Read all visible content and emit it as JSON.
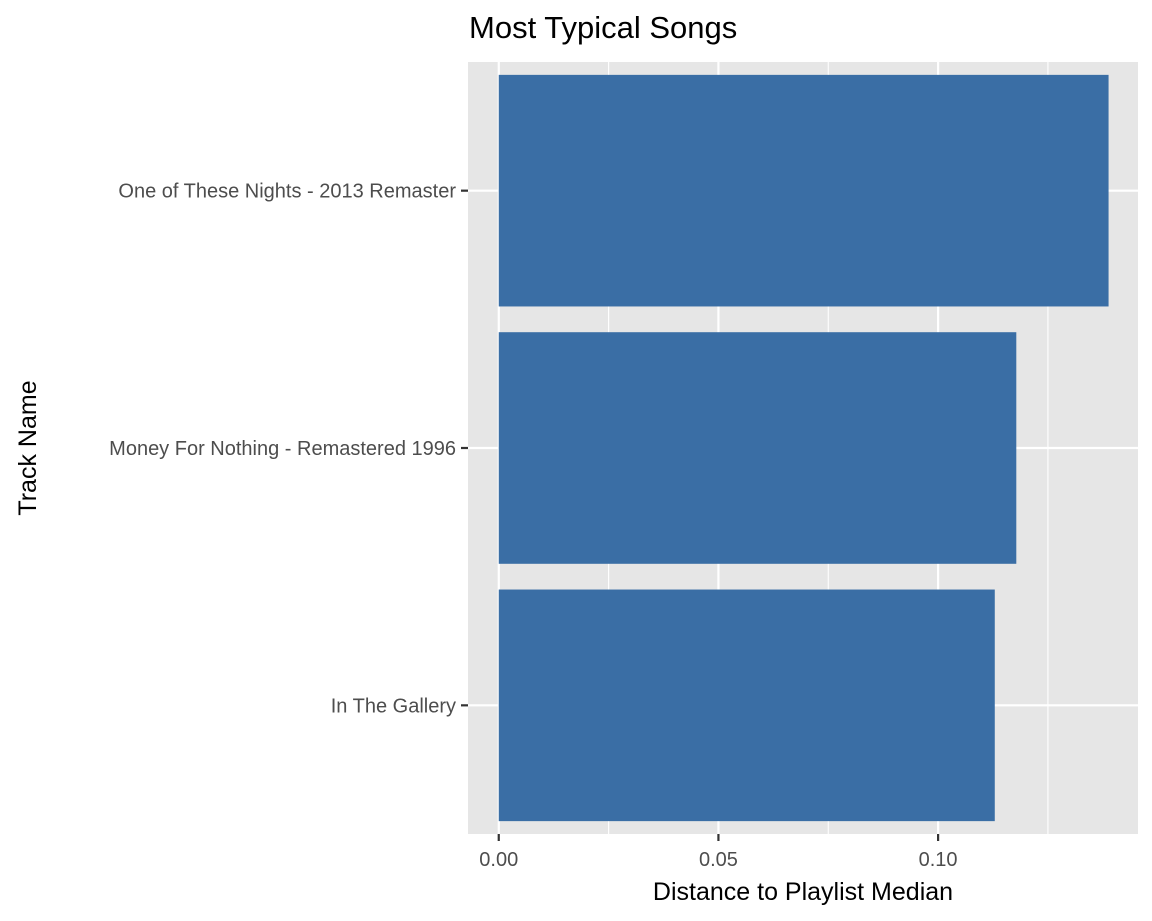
{
  "chart_data": {
    "type": "bar",
    "orientation": "horizontal",
    "title": "Most Typical Songs",
    "xlabel": "Distance to Playlist Median",
    "ylabel": "Track Name",
    "categories": [
      "In The Gallery",
      "Money For Nothing - Remastered 1996",
      "One of These Nights - 2013 Remaster"
    ],
    "values": [
      0.1129,
      0.1178,
      0.1388
    ],
    "xlim": [
      -0.007,
      0.1455
    ],
    "xticks": [
      0.0,
      0.05,
      0.1
    ],
    "xtick_labels": [
      "0.00",
      "0.05",
      "0.10"
    ],
    "grid": true,
    "legend": "none",
    "colors": {
      "bar": "#3A6EA5",
      "panel": "#E6E6E6",
      "grid": "#FFFFFF"
    }
  }
}
